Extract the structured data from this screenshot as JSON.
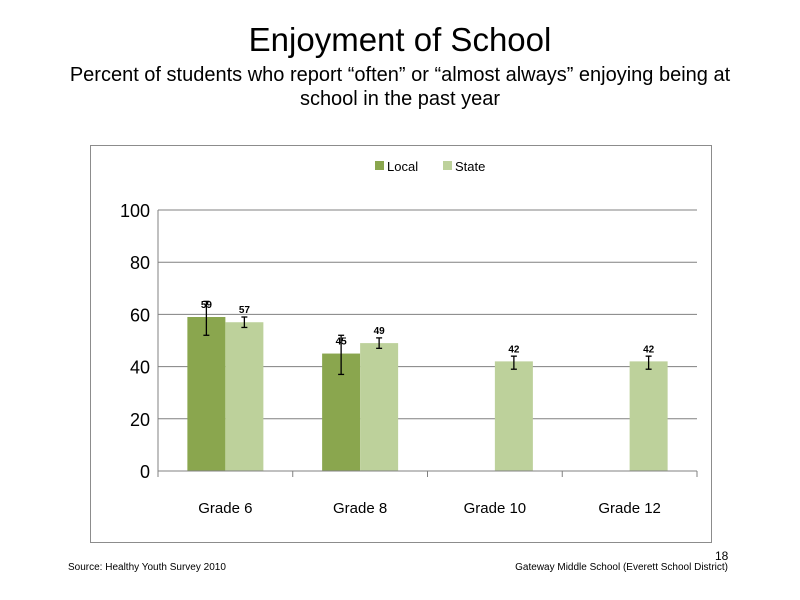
{
  "title": "Enjoyment of School",
  "subtitle": "Percent of students who report “often” or “almost always” enjoying being at school in the past year",
  "source": "Source: Healthy Youth Survey 2010",
  "school": "Gateway Middle  School (Everett School District)",
  "page_number": "18",
  "chart_data": {
    "type": "bar",
    "categories": [
      "Grade 6",
      "Grade 8",
      "Grade 10",
      "Grade 12"
    ],
    "series": [
      {
        "name": "Local",
        "color": "#8aa64e",
        "values": [
          59,
          45,
          null,
          null
        ],
        "labels": [
          "59",
          "45",
          "",
          ""
        ],
        "error_low": [
          52,
          37,
          null,
          null
        ],
        "error_high": [
          65,
          52,
          null,
          null
        ]
      },
      {
        "name": "State",
        "color": "#bdd19b",
        "values": [
          57,
          49,
          42,
          42
        ],
        "labels": [
          "57",
          "49",
          "42",
          "42"
        ],
        "error_low": [
          55,
          47,
          39,
          39
        ],
        "error_high": [
          59,
          51,
          44,
          44
        ]
      }
    ],
    "ylim": [
      0,
      100
    ],
    "yticks": [
      0,
      20,
      40,
      60,
      80,
      100
    ],
    "grid": true,
    "legend_position": "top-center"
  }
}
